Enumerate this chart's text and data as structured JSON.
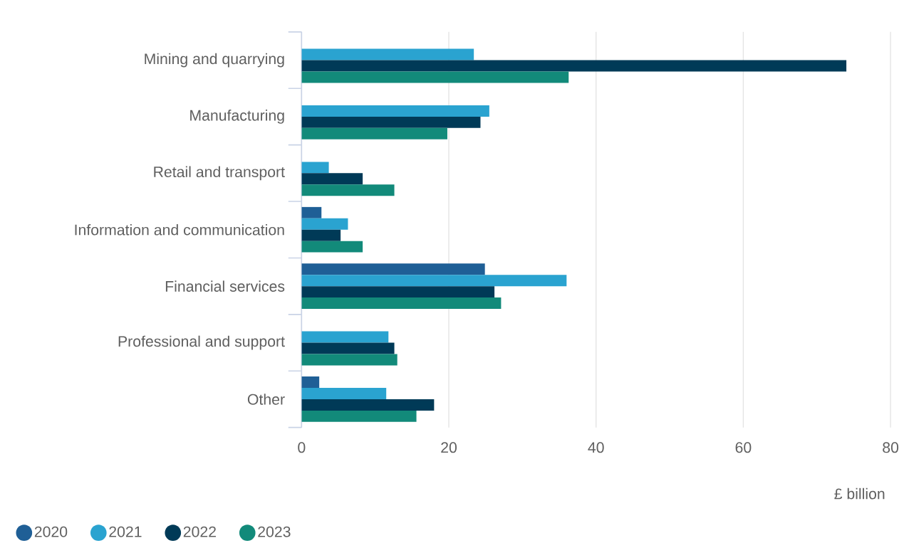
{
  "chart_data": {
    "type": "bar",
    "orientation": "horizontal",
    "categories": [
      "Mining and quarrying",
      "Manufacturing",
      "Retail and transport",
      "Information and communication",
      "Financial services",
      "Professional and support",
      "Other"
    ],
    "series": [
      {
        "name": "2020",
        "color": "#1f5f96",
        "values": [
          null,
          null,
          null,
          2.7,
          24.9,
          null,
          2.4
        ]
      },
      {
        "name": "2021",
        "color": "#2aa3d0",
        "values": [
          23.4,
          25.5,
          3.7,
          6.3,
          36.0,
          11.8,
          11.5
        ]
      },
      {
        "name": "2022",
        "color": "#003a57",
        "values": [
          74.0,
          24.3,
          8.3,
          5.3,
          26.2,
          12.6,
          18.0
        ]
      },
      {
        "name": "2023",
        "color": "#128a7a",
        "values": [
          36.3,
          19.8,
          12.6,
          8.3,
          27.1,
          13.0,
          15.6
        ]
      }
    ],
    "xlim": [
      0,
      80
    ],
    "xticks": [
      0,
      20,
      40,
      60,
      80
    ],
    "xlabel": "£ billion",
    "grid": "x",
    "legend": "bottom left"
  }
}
